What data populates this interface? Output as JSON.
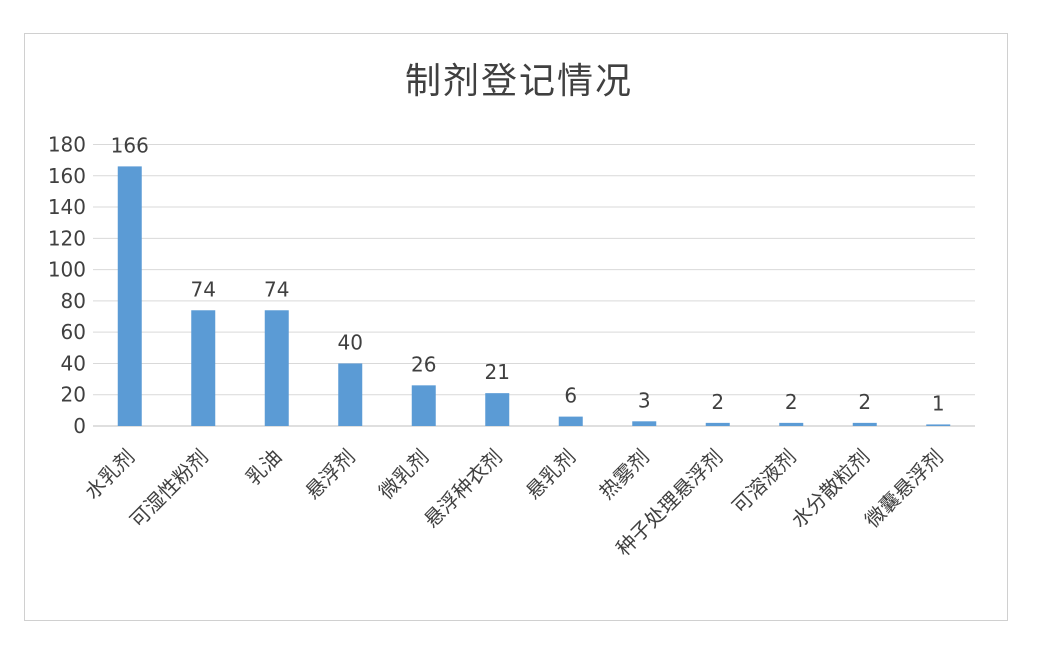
{
  "chart_data": {
    "type": "bar",
    "title": "制剂登记情况",
    "xlabel": "",
    "ylabel": "",
    "ylim": [
      0,
      180
    ],
    "yticks": [
      0,
      20,
      40,
      60,
      80,
      100,
      120,
      140,
      160,
      180
    ],
    "grid": true,
    "bar_color": "#5b9bd5",
    "categories": [
      "水乳剂",
      "可湿性粉剂",
      "乳油",
      "悬浮剂",
      "微乳剂",
      "悬浮种衣剂",
      "悬乳剂",
      "热雾剂",
      "种子处理悬浮剂",
      "可溶液剂",
      "水分散粒剂",
      "微囊悬浮剂"
    ],
    "values": [
      166,
      74,
      74,
      40,
      26,
      21,
      6,
      3,
      2,
      2,
      2,
      1
    ],
    "data_labels": [
      "166",
      "74",
      "74",
      "40",
      "26",
      "21",
      "6",
      "3",
      "2",
      "2",
      "2",
      "1"
    ],
    "legend": "none"
  }
}
